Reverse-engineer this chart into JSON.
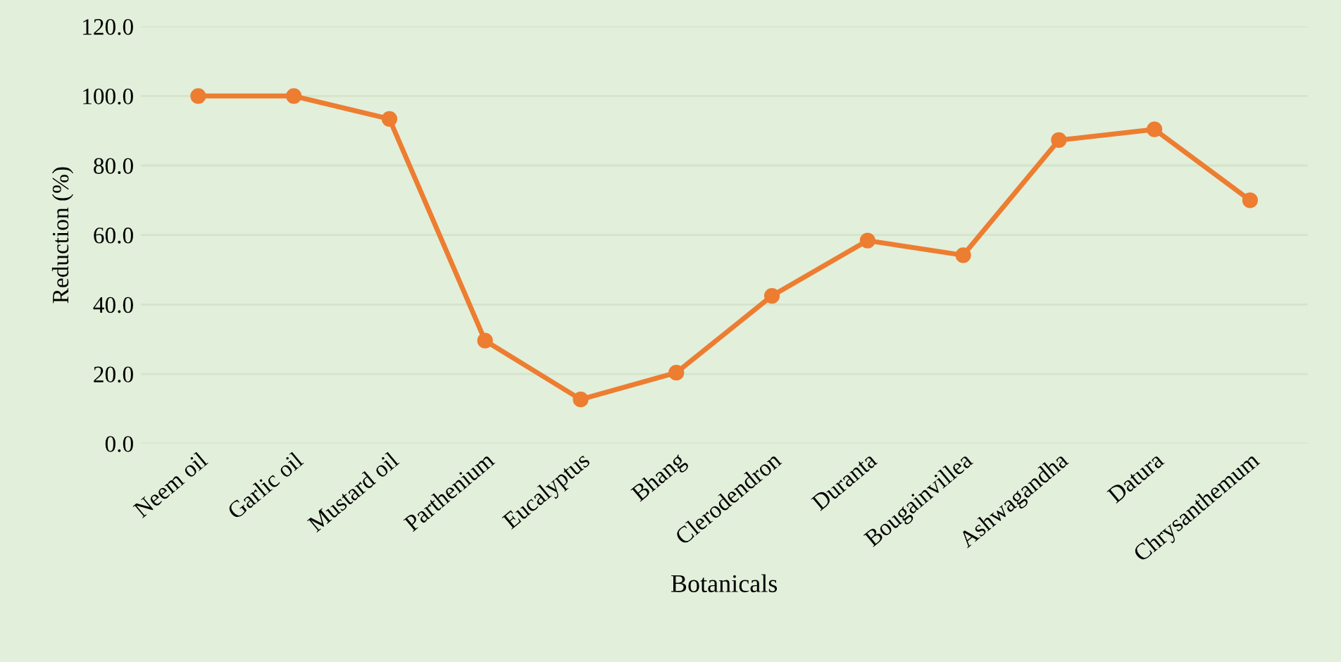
{
  "chart_data": {
    "type": "line",
    "xlabel": "Botanicals",
    "ylabel": "Reduction (%)",
    "categories": [
      "Neem oil",
      "Garlic oil",
      "Mustard oil",
      "Parthenium",
      "Eucalyptus",
      "Bhang",
      "Clerodendron",
      "Duranta",
      "Bougainvillea",
      "Ashwagandha",
      "Datura",
      "Chrysanthemum"
    ],
    "series": [
      {
        "color": "#ed7d31",
        "values": [
          100,
          100,
          93.4,
          29.6,
          12.7,
          20.4,
          42.5,
          58.4,
          54.2,
          87.3,
          90.4,
          70.0
        ]
      }
    ],
    "ylim": [
      0,
      120
    ],
    "yticks": [
      {
        "value": 0,
        "label": "0.0"
      },
      {
        "value": 20,
        "label": "20.0"
      },
      {
        "value": 40,
        "label": "40.0"
      },
      {
        "value": 60,
        "label": "60.0"
      },
      {
        "value": 80,
        "label": "80.0"
      },
      {
        "value": 100,
        "label": "100.0"
      },
      {
        "value": 120,
        "label": "120.0"
      }
    ],
    "grid": "y",
    "marker": "circle",
    "line_style": "solid",
    "legend": false
  }
}
